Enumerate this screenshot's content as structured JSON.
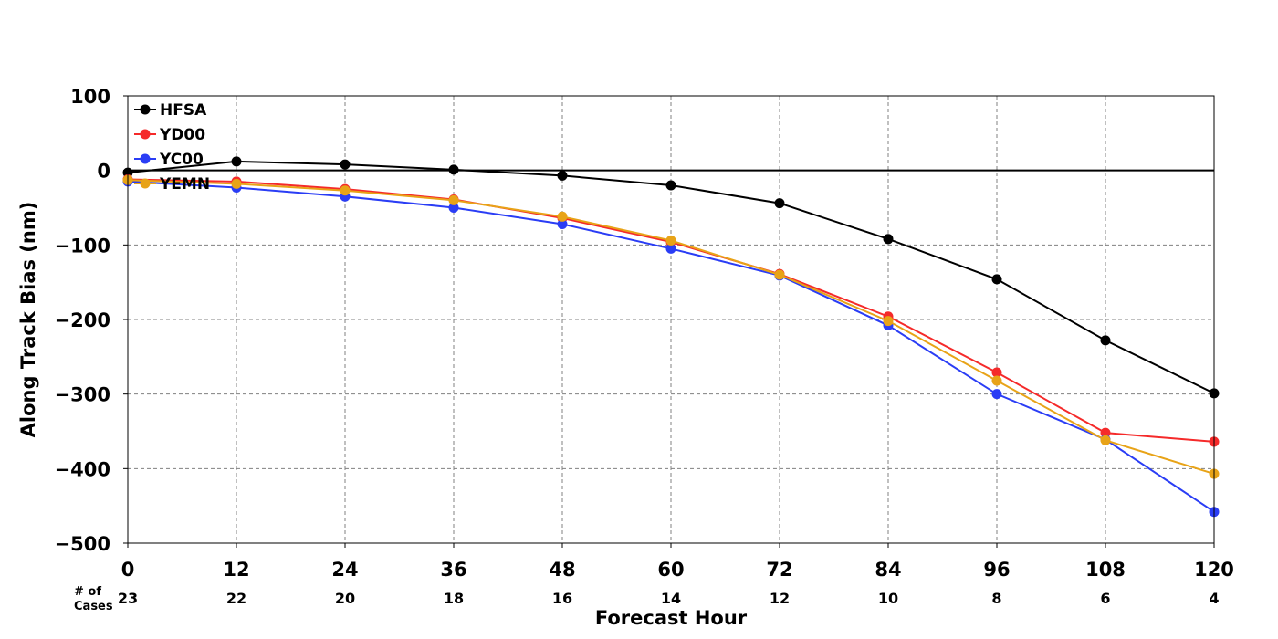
{
  "chart_data": {
    "type": "line",
    "title": "",
    "xlabel": "Forecast Hour",
    "ylabel": "Along Track Bias (nm)",
    "xlim": [
      0,
      120
    ],
    "ylim": [
      -500,
      100
    ],
    "x": [
      0,
      12,
      24,
      36,
      48,
      60,
      72,
      84,
      96,
      108,
      120
    ],
    "x_tick_labels": [
      "0",
      "12",
      "24",
      "36",
      "48",
      "60",
      "72",
      "84",
      "96",
      "108",
      "120"
    ],
    "y_ticks": [
      100,
      0,
      -100,
      -200,
      -300,
      -400,
      -500
    ],
    "y_tick_labels": [
      "100",
      "0",
      "−100",
      "−200",
      "−300",
      "−400",
      "−500"
    ],
    "cases_label": "# of Cases",
    "cases_label_lines": [
      "# of",
      "Cases"
    ],
    "cases": [
      "23",
      "22",
      "20",
      "18",
      "16",
      "14",
      "12",
      "10",
      "8",
      "6",
      "4"
    ],
    "grid": true,
    "legend_position": "top-left",
    "zero_line": true,
    "series": [
      {
        "name": "HFSA",
        "color": "#000000",
        "values": [
          -3,
          12,
          8,
          1,
          -7,
          -20,
          -44,
          -92,
          -146,
          -228,
          -299
        ]
      },
      {
        "name": "YD00",
        "color": "#f52a2a",
        "values": [
          -12,
          -15,
          -25,
          -39,
          -64,
          -96,
          -139,
          -196,
          -271,
          -352,
          -364
        ]
      },
      {
        "name": "YC00",
        "color": "#2a3df5",
        "values": [
          -15,
          -23,
          -35,
          -50,
          -72,
          -105,
          -141,
          -208,
          -300,
          -361,
          -458
        ]
      },
      {
        "name": "YEMN",
        "color": "#e8a317",
        "values": [
          -13,
          -18,
          -27,
          -40,
          -62,
          -94,
          -140,
          -202,
          -282,
          -362,
          -407
        ]
      }
    ]
  }
}
